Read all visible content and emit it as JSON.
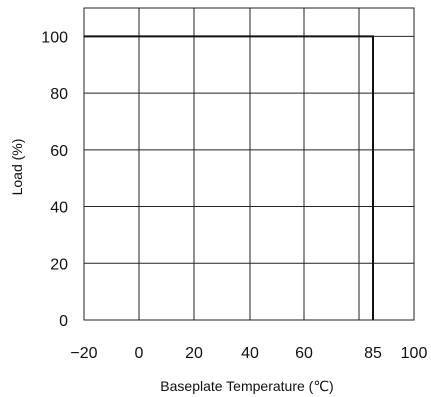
{
  "chart_data": {
    "type": "line",
    "xlabel": "Baseplate Temperature (℃)",
    "ylabel": "Load (%)",
    "xlim": [
      -20,
      100
    ],
    "ylim": [
      0,
      110
    ],
    "x_ticks": [
      {
        "value": -20,
        "label": "−20"
      },
      {
        "value": 0,
        "label": "0"
      },
      {
        "value": 20,
        "label": "20"
      },
      {
        "value": 40,
        "label": "40"
      },
      {
        "value": 60,
        "label": "60"
      },
      {
        "value": 85,
        "label": "85"
      },
      {
        "value": 100,
        "label": "100"
      }
    ],
    "y_ticks": [
      {
        "value": 0,
        "label": "0"
      },
      {
        "value": 20,
        "label": "20"
      },
      {
        "value": 40,
        "label": "40"
      },
      {
        "value": 60,
        "label": "60"
      },
      {
        "value": 80,
        "label": "80"
      },
      {
        "value": 100,
        "label": "100"
      }
    ],
    "grid": true,
    "series": [
      {
        "x": [
          -20,
          85,
          85
        ],
        "y": [
          100,
          100,
          0
        ]
      }
    ],
    "colors": {
      "line": "#111111",
      "grid": "#222222",
      "text": "#111111"
    }
  }
}
